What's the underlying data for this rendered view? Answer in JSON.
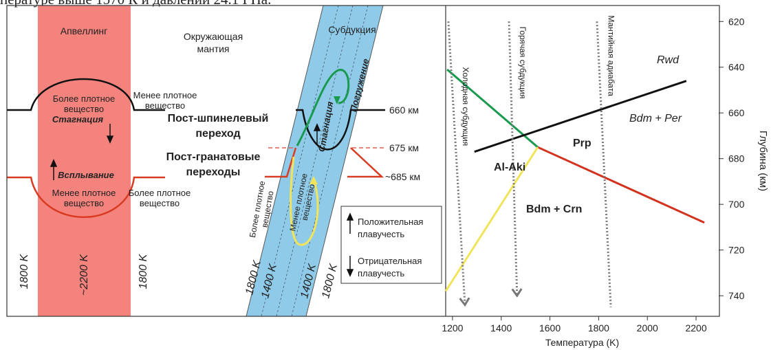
{
  "header_text": "пературе выше 1570 К и давлении 24.1 ГПа.",
  "diagram": {
    "upwelling": "Апвеллинг",
    "surrounding_mantle": [
      "Окружающая",
      "мантия"
    ],
    "subduction": "Субдукция",
    "denser_top": [
      "Более плотное",
      "вещество"
    ],
    "less_dense_right": [
      "Менее плотное",
      "вещество"
    ],
    "stagnation_upwelling": "Стагнация",
    "rising": "Всплывание",
    "less_dense_bottom": [
      "Менее плотное",
      "вещество"
    ],
    "denser_right": [
      "Более плотное",
      "вещество"
    ],
    "temps_upwelling": [
      "1800 K",
      "~2200 K",
      "1800 K"
    ],
    "post_spinel": [
      "Пост-шпинелевый",
      "переход"
    ],
    "post_garnet": [
      "Пост-гранатовые",
      "переходы"
    ],
    "depths": [
      "660 км",
      "675 км",
      "~685 км"
    ],
    "sinking": "Погружение",
    "stagnation_slab": "Стагнация",
    "slab_denser": [
      "Более плотное",
      "вещество"
    ],
    "slab_less_dense": [
      "Менее плотное",
      "вещество"
    ],
    "temps_slab": [
      "1800 K",
      "1400 K",
      "1400 K",
      "1800 K"
    ],
    "legend": {
      "positive": [
        "Положительная",
        "плавучесть"
      ],
      "negative": [
        "Отрицательная",
        "плавучесть"
      ]
    }
  },
  "chart_data": {
    "type": "line",
    "x_label": "Температура (K)",
    "y_label": "Глубина (км)",
    "xlim": [
      1172,
      2293
    ],
    "ylim": [
      749,
      613
    ],
    "xticks": [
      1200,
      1400,
      1600,
      1800,
      2000,
      2200
    ],
    "yticks": [
      620,
      640,
      660,
      680,
      700,
      720,
      740
    ],
    "y_axis_side": "right",
    "series": [
      {
        "color": "#1a9a4e",
        "x": [
          1178,
          1550
        ],
        "values": [
          641,
          675
        ]
      },
      {
        "color": "#111111",
        "x": [
          1290,
          2160
        ],
        "values": [
          677,
          646
        ]
      },
      {
        "color": "#d2321e",
        "x": [
          1550,
          2234
        ],
        "values": [
          675,
          708
        ]
      },
      {
        "color": "#f2e45a",
        "x": [
          1172,
          1550
        ],
        "values": [
          738,
          675
        ]
      },
      {
        "name": "Холодная субдукция",
        "color": "#777777",
        "style": "dotted",
        "arrow": true,
        "x": [
          1183,
          1251
        ],
        "values": [
          620,
          744
        ]
      },
      {
        "name": "Горячая субдукция",
        "color": "#777777",
        "style": "dotted",
        "arrow": true,
        "x": [
          1432,
          1465
        ],
        "values": [
          620,
          740
        ]
      },
      {
        "name": "Мантийная адиабата",
        "color": "#777777",
        "style": "dotted",
        "arrow": false,
        "x": [
          1793,
          1850
        ],
        "values": [
          620,
          745
        ]
      }
    ],
    "annotations": [
      {
        "text": "Rwd",
        "style": "italic"
      },
      {
        "text": "Bdm + Per",
        "style": "italic"
      },
      {
        "text": "Prp",
        "style": "bold"
      },
      {
        "text": "Al-Aki",
        "style": "bold"
      },
      {
        "text": "Bdm + Crn",
        "style": "bold"
      }
    ]
  }
}
